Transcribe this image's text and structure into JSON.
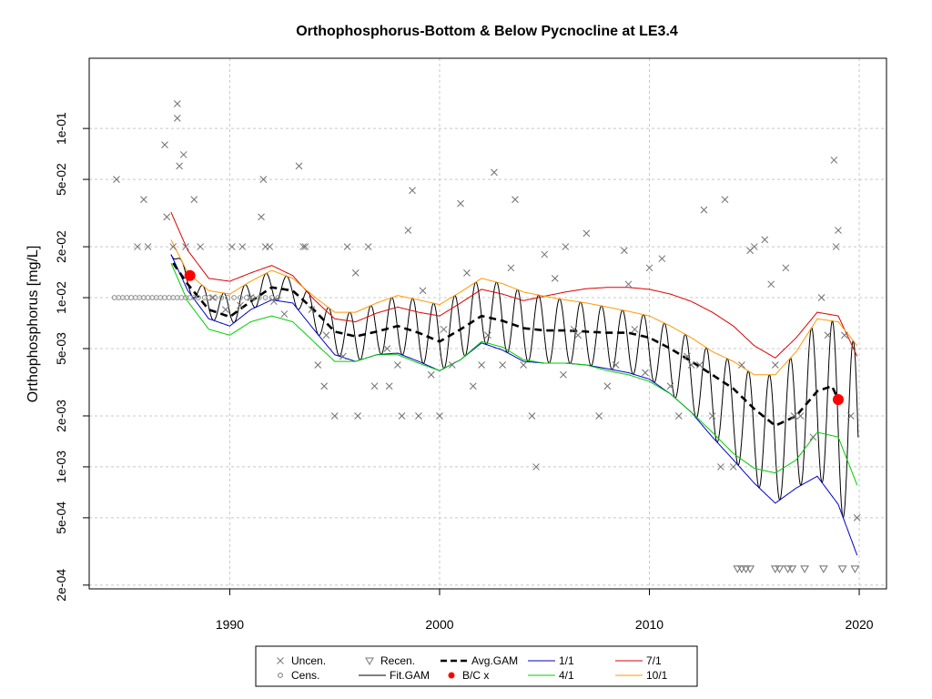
{
  "chart_data": {
    "type": "scatter",
    "title": "Orthophosphorus-Bottom & Below Pycnocline at LE3.4",
    "xlabel": "",
    "ylabel": "Orthophosphorus [mg/L]",
    "y_scale": "log",
    "xlim": [
      1983.3,
      2021.3
    ],
    "ylim": [
      0.00019,
      0.26
    ],
    "x_ticks": [
      1990,
      2000,
      2010,
      2020
    ],
    "x_tick_labels": [
      "1990",
      "2000",
      "2010",
      "2020"
    ],
    "y_ticks": [
      0.0002,
      0.0005,
      0.001,
      0.002,
      0.005,
      0.01,
      0.02,
      0.05,
      0.1
    ],
    "y_tick_labels": [
      "2e-04",
      "5e-04",
      "1e-03",
      "2e-03",
      "5e-03",
      "1e-02",
      "2e-02",
      "5e-02",
      "1e-01"
    ],
    "grid": true,
    "legend_position": "bottom-center",
    "legend": [
      {
        "label": "Uncen.",
        "marker": "x",
        "color": "#777777"
      },
      {
        "label": "Recen.",
        "marker": "triangle-down",
        "color": "#777777"
      },
      {
        "label": "Avg.GAM",
        "line": "dashed",
        "color": "#000000"
      },
      {
        "label": "1/1",
        "line": "solid",
        "color": "#0000cc"
      },
      {
        "label": "7/1",
        "line": "solid",
        "color": "#dd0000"
      },
      {
        "label": "Cens.",
        "marker": "circle",
        "color": "#777777"
      },
      {
        "label": "Fit.GAM",
        "line": "solid",
        "color": "#000000"
      },
      {
        "label": "B/C x",
        "marker": "filled-circle",
        "color": "#ff0000"
      },
      {
        "label": "4/1",
        "line": "solid",
        "color": "#00cc00"
      },
      {
        "label": "10/1",
        "line": "solid",
        "color": "#ff9900"
      }
    ],
    "series": [
      {
        "name": "Avg.GAM",
        "color": "#000000",
        "x": [
          1987.3,
          1988.0,
          1989.0,
          1990.0,
          1991.0,
          1992.0,
          1993.0,
          1994.0,
          1995.0,
          1996.0,
          1997.0,
          1998.0,
          1999.0,
          2000.0,
          2001.0,
          2002.0,
          2003.0,
          2004.0,
          2005.0,
          2006.0,
          2007.0,
          2008.0,
          2009.0,
          2010.0,
          2011.0,
          2012.0,
          2013.0,
          2014.0,
          2015.0,
          2016.0,
          2017.0,
          2018.0,
          2018.7,
          2019.0
        ],
        "y": [
          0.016,
          0.012,
          0.0085,
          0.0077,
          0.0095,
          0.0115,
          0.011,
          0.0085,
          0.0063,
          0.0059,
          0.0063,
          0.0068,
          0.0062,
          0.0055,
          0.0065,
          0.0078,
          0.0073,
          0.0066,
          0.0064,
          0.0064,
          0.0063,
          0.0062,
          0.0062,
          0.0058,
          0.005,
          0.0042,
          0.0035,
          0.0029,
          0.0022,
          0.00175,
          0.002,
          0.0028,
          0.003,
          0.0025
        ]
      },
      {
        "name": "1/1",
        "color": "#0000cc",
        "x": [
          1987.2,
          1988.0,
          1989.0,
          1990.0,
          1991.0,
          1992.0,
          1993.0,
          1994.0,
          1995.0,
          1996.0,
          1997.0,
          1998.0,
          1999.0,
          2000.0,
          2001.0,
          2002.0,
          2003.0,
          2004.0,
          2005.0,
          2006.0,
          2007.0,
          2008.0,
          2009.0,
          2010.0,
          2011.0,
          2012.0,
          2013.0,
          2014.0,
          2015.0,
          2016.0,
          2017.0,
          2018.0,
          2019.0,
          2019.9
        ],
        "y": [
          0.018,
          0.011,
          0.0075,
          0.0068,
          0.0085,
          0.0097,
          0.0093,
          0.0065,
          0.0046,
          0.0042,
          0.0046,
          0.0047,
          0.0042,
          0.0037,
          0.0043,
          0.0054,
          0.0049,
          0.0042,
          0.0041,
          0.0041,
          0.004,
          0.0038,
          0.0036,
          0.0033,
          0.0027,
          0.0021,
          0.0015,
          0.0011,
          0.0008,
          0.00061,
          0.00075,
          0.00088,
          0.0006,
          0.0003
        ]
      },
      {
        "name": "4/1",
        "color": "#00cc00",
        "x": [
          1987.2,
          1988.0,
          1989.0,
          1990.0,
          1991.0,
          1992.0,
          1993.0,
          1994.0,
          1995.0,
          1996.0,
          1997.0,
          1998.0,
          1999.0,
          2000.0,
          2001.0,
          2002.0,
          2003.0,
          2004.0,
          2005.0,
          2006.0,
          2007.0,
          2008.0,
          2009.0,
          2010.0,
          2011.0,
          2012.0,
          2013.0,
          2014.0,
          2015.0,
          2016.0,
          2017.0,
          2018.0,
          2019.0,
          2019.9
        ],
        "y": [
          0.016,
          0.0095,
          0.0065,
          0.006,
          0.0072,
          0.0078,
          0.0072,
          0.0055,
          0.0042,
          0.0042,
          0.0046,
          0.0046,
          0.0041,
          0.0037,
          0.0043,
          0.0055,
          0.0051,
          0.0043,
          0.0041,
          0.0041,
          0.004,
          0.0037,
          0.0035,
          0.0032,
          0.0027,
          0.0021,
          0.0016,
          0.0012,
          0.00098,
          0.00092,
          0.0011,
          0.0016,
          0.0015,
          0.00078
        ]
      },
      {
        "name": "7/1",
        "color": "#dd0000",
        "x": [
          1987.2,
          1988.0,
          1989.0,
          1990.0,
          1991.0,
          1992.0,
          1993.0,
          1994.0,
          1995.0,
          1996.0,
          1997.0,
          1998.0,
          1999.0,
          2000.0,
          2001.0,
          2002.0,
          2003.0,
          2004.0,
          2005.0,
          2006.0,
          2007.0,
          2008.0,
          2009.0,
          2010.0,
          2011.0,
          2012.0,
          2013.0,
          2014.0,
          2015.0,
          2016.0,
          2017.0,
          2018.0,
          2019.0,
          2019.9
        ],
        "y": [
          0.032,
          0.019,
          0.013,
          0.0125,
          0.014,
          0.0155,
          0.0135,
          0.0098,
          0.0075,
          0.0072,
          0.0081,
          0.0088,
          0.0082,
          0.0078,
          0.0093,
          0.0112,
          0.0105,
          0.0096,
          0.0102,
          0.0108,
          0.0113,
          0.0115,
          0.0115,
          0.0112,
          0.0105,
          0.0095,
          0.0082,
          0.0068,
          0.0052,
          0.0044,
          0.0058,
          0.0082,
          0.0078,
          0.0045
        ]
      },
      {
        "name": "10/1",
        "color": "#ff9900",
        "x": [
          1987.2,
          1988.0,
          1989.0,
          1990.0,
          1991.0,
          1992.0,
          1993.0,
          1994.0,
          1995.0,
          1996.0,
          1997.0,
          1998.0,
          1999.0,
          2000.0,
          2001.0,
          2002.0,
          2003.0,
          2004.0,
          2005.0,
          2006.0,
          2007.0,
          2008.0,
          2009.0,
          2010.0,
          2011.0,
          2012.0,
          2013.0,
          2014.0,
          2015.0,
          2016.0,
          2017.0,
          2018.0,
          2019.0,
          2019.9
        ],
        "y": [
          0.022,
          0.014,
          0.011,
          0.0105,
          0.0125,
          0.0145,
          0.013,
          0.0102,
          0.0082,
          0.0082,
          0.0093,
          0.0103,
          0.0097,
          0.0091,
          0.0108,
          0.013,
          0.0121,
          0.0108,
          0.0102,
          0.0097,
          0.0093,
          0.0088,
          0.0083,
          0.0078,
          0.0068,
          0.0058,
          0.0048,
          0.0042,
          0.0035,
          0.0035,
          0.0048,
          0.0075,
          0.0072,
          0.0052
        ]
      }
    ],
    "fit_gam": {
      "name": "Fit.GAM",
      "color": "#000000",
      "description_of_trace": "seasonal oscillation around Avg.GAM; peaks follow 10/1 level, troughs follow 1/1 level",
      "x_start": 1987.2,
      "x_end": 2019.95,
      "cycles_per_year": 1
    },
    "bc_points": {
      "name": "B/C x",
      "color": "#ff0000",
      "x": [
        1988.1,
        2019.0
      ],
      "y": [
        0.0135,
        0.0025
      ]
    },
    "points_uncensored": {
      "name": "Uncen.",
      "color": "#707070",
      "x": [
        1984.6,
        1985.6,
        1985.9,
        1986.1,
        1986.9,
        1987.0,
        1987.3,
        1987.5,
        1987.5,
        1987.6,
        1987.8,
        1987.9,
        1988.3,
        1988.6,
        1989.2,
        1989.8,
        1990.1,
        1990.5,
        1990.6,
        1991.0,
        1991.5,
        1991.6,
        1991.7,
        1991.9,
        1992.1,
        1992.6,
        1993.3,
        1993.5,
        1993.6,
        1993.9,
        1994.2,
        1994.5,
        1994.6,
        1995.0,
        1995.4,
        1995.6,
        1996.0,
        1996.1,
        1996.6,
        1996.9,
        1997.5,
        1997.6,
        1998.0,
        1998.2,
        1998.5,
        1998.7,
        1999.0,
        1999.2,
        1999.6,
        2000.0,
        2000.2,
        2000.6,
        2001.0,
        2001.3,
        2001.6,
        2002.0,
        2002.3,
        2002.6,
        2003.0,
        2003.4,
        2003.6,
        2004.0,
        2004.4,
        2004.6,
        2005.0,
        2005.5,
        2005.9,
        2006.0,
        2006.4,
        2006.6,
        2007.0,
        2007.6,
        2008.0,
        2008.4,
        2008.8,
        2009.0,
        2009.3,
        2009.8,
        2010.0,
        2010.6,
        2011.0,
        2011.4,
        2011.8,
        2012.0,
        2012.4,
        2012.6,
        2013.0,
        2013.4,
        2013.6,
        2014.0,
        2014.4,
        2014.8,
        2015.0,
        2015.5,
        2015.8,
        2016.0,
        2016.5,
        2016.9,
        2017.2,
        2017.8,
        2018.2,
        2018.5,
        2018.8,
        2018.9,
        2019.0,
        2019.3,
        2019.6,
        2019.9
      ],
      "y": [
        0.05,
        0.02,
        0.038,
        0.02,
        0.08,
        0.03,
        0.02,
        0.14,
        0.115,
        0.06,
        0.07,
        0.02,
        0.038,
        0.02,
        0.01,
        0.0085,
        0.02,
        0.009,
        0.02,
        0.01,
        0.03,
        0.05,
        0.02,
        0.02,
        0.0095,
        0.008,
        0.06,
        0.02,
        0.02,
        0.0085,
        0.004,
        0.003,
        0.006,
        0.002,
        0.0045,
        0.02,
        0.014,
        0.002,
        0.02,
        0.003,
        0.005,
        0.003,
        0.004,
        0.002,
        0.025,
        0.043,
        0.002,
        0.011,
        0.0035,
        0.002,
        0.0065,
        0.004,
        0.036,
        0.014,
        0.003,
        0.004,
        0.006,
        0.055,
        0.004,
        0.015,
        0.038,
        0.004,
        0.002,
        0.001,
        0.018,
        0.013,
        0.0035,
        0.02,
        0.0065,
        0.006,
        0.024,
        0.002,
        0.003,
        0.004,
        0.019,
        0.012,
        0.0065,
        0.0036,
        0.015,
        0.017,
        0.003,
        0.002,
        0.0045,
        0.004,
        0.004,
        0.033,
        0.002,
        0.001,
        0.038,
        0.001,
        0.004,
        0.019,
        0.02,
        0.022,
        0.012,
        0.004,
        0.015,
        0.002,
        0.002,
        0.0015,
        0.01,
        0.006,
        0.065,
        0.02,
        0.025,
        0.006,
        0.002,
        0.0005
      ]
    },
    "points_censored": {
      "name": "Cens.",
      "color": "#909090",
      "x": [
        1984.5,
        1984.7,
        1984.9,
        1985.1,
        1985.3,
        1985.5,
        1985.7,
        1985.9,
        1986.1,
        1986.3,
        1986.5,
        1986.7,
        1986.9,
        1987.1,
        1987.3,
        1987.5,
        1987.7,
        1987.9,
        1988.1,
        1988.3,
        1988.5,
        1988.8,
        1989.0,
        1989.3,
        1989.6,
        1989.9,
        1990.2,
        1990.5,
        1990.8,
        1991.1,
        1991.4,
        1991.7,
        1992.0,
        1992.3
      ],
      "y": [
        0.01,
        0.01,
        0.01,
        0.01,
        0.01,
        0.01,
        0.01,
        0.01,
        0.01,
        0.01,
        0.01,
        0.01,
        0.01,
        0.01,
        0.01,
        0.01,
        0.01,
        0.01,
        0.01,
        0.01,
        0.01,
        0.01,
        0.01,
        0.01,
        0.01,
        0.01,
        0.01,
        0.01,
        0.01,
        0.01,
        0.01,
        0.01,
        0.01,
        0.01
      ]
    },
    "points_recensored": {
      "name": "Recen.",
      "color": "#707070",
      "x": [
        2014.2,
        2014.4,
        2014.6,
        2014.8,
        2016.0,
        2016.2,
        2016.6,
        2016.8,
        2017.4,
        2018.3,
        2019.2,
        2019.8
      ],
      "y": [
        0.00025,
        0.00025,
        0.00025,
        0.00025,
        0.00025,
        0.00025,
        0.00025,
        0.00025,
        0.00025,
        0.00025,
        0.00025,
        0.00025
      ]
    }
  }
}
